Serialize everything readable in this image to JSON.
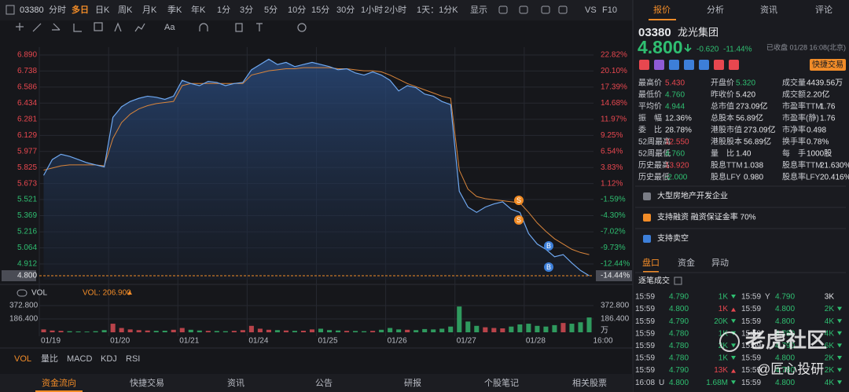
{
  "toolbar": {
    "code": "03380",
    "periods": [
      "分时",
      "多日",
      "日K",
      "周K",
      "月K",
      "季K",
      "年K",
      "1分",
      "3分",
      "5分",
      "10分",
      "15分",
      "30分",
      "1小时",
      "2小时"
    ],
    "active_period": 1,
    "interval": "1天：1分K",
    "display": "显示",
    "vs": "VS",
    "f10": "F10",
    "draw_text_tool": "Aa"
  },
  "chart": {
    "price_ticks": [
      {
        "value": 6.89,
        "label": "6.890"
      },
      {
        "value": 6.738,
        "label": "6.738"
      },
      {
        "value": 6.586,
        "label": "6.586"
      },
      {
        "value": 6.434,
        "label": "6.434"
      },
      {
        "value": 6.281,
        "label": "6.281"
      },
      {
        "value": 6.129,
        "label": "6.129"
      },
      {
        "value": 5.977,
        "label": "5.977"
      },
      {
        "value": 5.825,
        "label": "5.825"
      },
      {
        "value": 5.673,
        "label": "5.673"
      },
      {
        "value": 5.521,
        "label": "5.521"
      },
      {
        "value": 5.369,
        "label": "5.369"
      },
      {
        "value": 5.216,
        "label": "5.216"
      },
      {
        "value": 5.064,
        "label": "5.064"
      },
      {
        "value": 4.912,
        "label": "4.912"
      },
      {
        "value": 4.8,
        "label": "4.800"
      }
    ],
    "pct_ticks": [
      {
        "value": 22.82,
        "label": "22.82%"
      },
      {
        "value": 20.1,
        "label": "20.10%"
      },
      {
        "value": 17.39,
        "label": "17.39%"
      },
      {
        "value": 14.68,
        "label": "14.68%"
      },
      {
        "value": 11.97,
        "label": "11.97%"
      },
      {
        "value": 9.25,
        "label": "9.25%"
      },
      {
        "value": 6.54,
        "label": "6.54%"
      },
      {
        "value": 3.83,
        "label": "3.83%"
      },
      {
        "value": 1.12,
        "label": "1.12%"
      },
      {
        "value": -1.59,
        "label": "-1.59%"
      },
      {
        "value": -4.3,
        "label": "-4.30%"
      },
      {
        "value": -7.02,
        "label": "-7.02%"
      },
      {
        "value": -9.73,
        "label": "-9.73%"
      },
      {
        "value": -12.44,
        "label": "-12.44%"
      },
      {
        "value": -14.44,
        "label": "-14.44%"
      }
    ],
    "dates": [
      "01/19",
      "01/20",
      "01/21",
      "01/24",
      "01/25",
      "01/26",
      "01/27",
      "01/28"
    ],
    "time_end": "16:00",
    "price_series": [
      5.75,
      5.9,
      5.95,
      5.93,
      5.9,
      5.87,
      5.85,
      5.83,
      6.3,
      6.4,
      6.45,
      6.48,
      6.5,
      6.49,
      6.47,
      6.5,
      6.65,
      6.62,
      6.6,
      6.64,
      6.63,
      6.6,
      6.62,
      6.63,
      6.75,
      6.8,
      6.85,
      6.8,
      6.82,
      6.78,
      6.8,
      6.82,
      6.8,
      6.78,
      6.75,
      6.76,
      6.72,
      6.7,
      6.73,
      6.7,
      6.65,
      6.55,
      6.6,
      6.58,
      6.52,
      6.5,
      6.45,
      6.42,
      5.6,
      5.45,
      5.4,
      5.45,
      5.48,
      5.5,
      5.43,
      5.4,
      5.2,
      5.1,
      5.05,
      4.98,
      5.0,
      4.92,
      4.85,
      4.8
    ],
    "avg_series": [
      5.8,
      5.82,
      5.84,
      5.85,
      5.85,
      5.85,
      5.85,
      5.84,
      6.1,
      6.25,
      6.33,
      6.38,
      6.41,
      6.43,
      6.44,
      6.45,
      6.6,
      6.62,
      6.62,
      6.62,
      6.62,
      6.62,
      6.62,
      6.62,
      6.7,
      6.72,
      6.74,
      6.75,
      6.76,
      6.76,
      6.77,
      6.77,
      6.77,
      6.77,
      6.76,
      6.76,
      6.75,
      6.74,
      6.74,
      6.73,
      6.7,
      6.66,
      6.62,
      6.59,
      6.56,
      6.53,
      6.5,
      6.48,
      5.8,
      5.62,
      5.55,
      5.53,
      5.52,
      5.51,
      5.5,
      5.49,
      5.4,
      5.3,
      5.22,
      5.15,
      5.1,
      5.05,
      5.02,
      5.0
    ],
    "trade_marks": [
      "S",
      "S",
      "B",
      "B"
    ],
    "vol_name": "VOL",
    "vol_current": "VOL: 206.900",
    "vol_ticks": [
      {
        "value": 372.8,
        "label": "372.800"
      },
      {
        "value": 186.4,
        "label": "186.400"
      }
    ],
    "vol_unit": "万",
    "vol_series": [
      40,
      25,
      20,
      15,
      12,
      10,
      15,
      30,
      120,
      60,
      40,
      30,
      25,
      20,
      22,
      35,
      60,
      35,
      25,
      20,
      18,
      15,
      20,
      30,
      90,
      50,
      35,
      30,
      25,
      20,
      22,
      40,
      50,
      30,
      25,
      20,
      18,
      15,
      20,
      35,
      60,
      40,
      35,
      30,
      45,
      40,
      50,
      80,
      360,
      150,
      90,
      70,
      60,
      55,
      80,
      110,
      120,
      90,
      80,
      100,
      130,
      120,
      140,
      206.9
    ]
  },
  "indicator_tabs": [
    "VOL",
    "量比",
    "MACD",
    "KDJ",
    "RSI"
  ],
  "bottom_tabs": [
    "资金流向",
    "快捷交易",
    "资讯",
    "公告",
    "研报",
    "个股笔记",
    "相关股票"
  ],
  "side": {
    "tabs": [
      "报价",
      "分析",
      "资讯",
      "评论"
    ],
    "code": "03380",
    "name": "龙光集团",
    "price": "4.800",
    "change": "-0.620",
    "change_pct": "-11.44%",
    "status": "已收盘 01/28 16:08(北京)",
    "quick_trade": "快捷交易",
    "stats": [
      [
        {
          "label": "最高价",
          "value": "5.430",
          "tone": "up"
        },
        {
          "label": "开盘价",
          "value": "5.320",
          "tone": "down"
        },
        {
          "label": "成交量",
          "value": "4439.56万",
          "tone": "flat"
        }
      ],
      [
        {
          "label": "最低价",
          "value": "4.760",
          "tone": "down"
        },
        {
          "label": "昨收价",
          "value": "5.420",
          "tone": "flat"
        },
        {
          "label": "成交额",
          "value": "2.20亿",
          "tone": "flat"
        }
      ],
      [
        {
          "label": "平均价",
          "value": "4.944",
          "tone": "down"
        },
        {
          "label": "总市值",
          "value": "273.09亿",
          "tone": "flat"
        },
        {
          "label": "市盈率TTM",
          "value": "1.76",
          "tone": "flat"
        }
      ],
      [
        {
          "label": "振　幅",
          "value": "12.36%",
          "tone": "flat"
        },
        {
          "label": "总股本",
          "value": "56.89亿",
          "tone": "flat"
        },
        {
          "label": "市盈率(静)",
          "value": "1.76",
          "tone": "flat"
        }
      ],
      [
        {
          "label": "委　比",
          "value": "28.78%",
          "tone": "flat"
        },
        {
          "label": "港股市值",
          "value": "273.09亿",
          "tone": "flat"
        },
        {
          "label": "市净率",
          "value": "0.498",
          "tone": "flat"
        }
      ],
      [
        {
          "label": "52周最高",
          "value": "12.550",
          "tone": "up"
        },
        {
          "label": "港股股本",
          "value": "56.89亿",
          "tone": "flat"
        },
        {
          "label": "换手率",
          "value": "0.78%",
          "tone": "flat"
        }
      ],
      [
        {
          "label": "52周最低",
          "value": "4.760",
          "tone": "down"
        },
        {
          "label": "量　比",
          "value": "1.40",
          "tone": "flat"
        },
        {
          "label": "每　手",
          "value": "1000股",
          "tone": "flat"
        }
      ],
      [
        {
          "label": "历史最高",
          "value": "13.920",
          "tone": "up"
        },
        {
          "label": "股息TTM",
          "value": "1.038",
          "tone": "flat"
        },
        {
          "label": "股息率TTM",
          "value": "21.630%",
          "tone": "flat"
        }
      ],
      [
        {
          "label": "历史最低",
          "value": "-2.000",
          "tone": "down"
        },
        {
          "label": "股息LFY",
          "value": "0.980",
          "tone": "flat"
        },
        {
          "label": "股息率LFY",
          "value": "20.416%",
          "tone": "flat"
        }
      ]
    ],
    "tags": [
      "大型房地产开发企业",
      "支持融资 融资保证金率 70%",
      "支持卖空"
    ],
    "panel_tabs": [
      "盘口",
      "资金",
      "异动"
    ],
    "ticks_title": "逐笔成交",
    "trades_left": [
      {
        "time": "15:59",
        "price": "4.790",
        "vol": "1K",
        "tone": "down"
      },
      {
        "time": "15:59",
        "price": "4.800",
        "vol": "1K",
        "tone": "up"
      },
      {
        "time": "15:59",
        "price": "4.790",
        "vol": "20K",
        "tone": "down"
      },
      {
        "time": "15:59",
        "price": "4.780",
        "vol": "1K",
        "tone": "down"
      },
      {
        "time": "15:59",
        "price": "4.780",
        "vol": "2K",
        "tone": "down"
      },
      {
        "time": "15:59",
        "price": "4.780",
        "vol": "1K",
        "tone": "down"
      },
      {
        "time": "15:59",
        "price": "4.790",
        "vol": "13K",
        "tone": "up"
      },
      {
        "time": "16:08",
        "flag": "U",
        "price": "4.800",
        "vol": "1.68M",
        "tone": "down"
      }
    ],
    "trades_right": [
      {
        "time": "15:59",
        "flag": "Y",
        "price": "4.790",
        "vol": "3K",
        "tone": "flat"
      },
      {
        "time": "15:59",
        "price": "4.800",
        "vol": "2K",
        "tone": "down"
      },
      {
        "time": "15:59",
        "price": "4.800",
        "vol": "4K",
        "tone": "down"
      },
      {
        "time": "15:59",
        "price": "4.780",
        "vol": "4K",
        "tone": "down"
      },
      {
        "time": "15:59",
        "price": "4.790",
        "vol": "6K",
        "tone": "down"
      },
      {
        "time": "15:59",
        "price": "4.800",
        "vol": "2K",
        "tone": "down"
      },
      {
        "time": "15:59",
        "price": "4.780",
        "vol": "2K",
        "tone": "down"
      },
      {
        "time": "15:59",
        "price": "4.800",
        "vol": "4K",
        "tone": "down"
      }
    ],
    "watermark": "老虎社区",
    "watermark_author": "@匠心投研"
  }
}
